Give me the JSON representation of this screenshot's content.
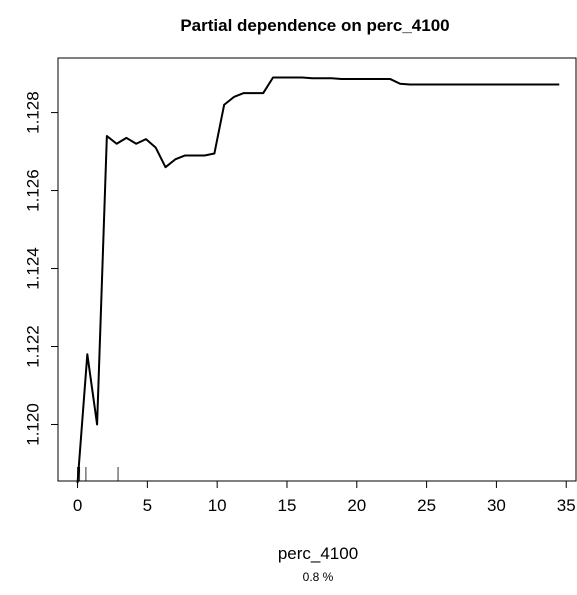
{
  "chart_data": {
    "type": "line",
    "title": "Partial dependence on perc_4100",
    "xlabel": "perc_4100",
    "subtitle": "0.8 %",
    "ylabel": "",
    "xlim": [
      -1.4,
      35.7
    ],
    "ylim": [
      1.11855,
      1.1294
    ],
    "x_ticks": [
      0,
      5,
      10,
      15,
      20,
      25,
      30,
      35
    ],
    "y_ticks": [
      1.12,
      1.122,
      1.124,
      1.126,
      1.128
    ],
    "y_tick_labels": [
      "1.120",
      "1.122",
      "1.124",
      "1.126",
      "1.128"
    ],
    "grid": false,
    "line_color": "#000000",
    "series": [
      {
        "x": [
          0.0,
          0.7,
          1.4,
          2.1,
          2.8,
          3.5,
          4.2,
          4.9,
          5.6,
          6.3,
          7.0,
          7.7,
          8.4,
          9.1,
          9.8,
          10.5,
          11.2,
          11.9,
          12.6,
          13.3,
          14.0,
          14.7,
          15.4,
          16.1,
          16.8,
          17.5,
          18.2,
          18.9,
          19.6,
          20.3,
          21.0,
          21.7,
          22.4,
          23.1,
          23.8,
          24.5,
          25.2,
          25.9,
          26.6,
          27.3,
          28.0,
          28.7,
          29.4,
          30.1,
          30.8,
          31.5,
          32.2,
          32.9,
          33.6,
          34.3,
          34.5
        ],
        "y": [
          1.1185,
          1.1218,
          1.12,
          1.1274,
          1.1272,
          1.12735,
          1.1272,
          1.12732,
          1.1271,
          1.1266,
          1.1268,
          1.1269,
          1.1269,
          1.1269,
          1.12695,
          1.1282,
          1.1284,
          1.1285,
          1.1285,
          1.1285,
          1.1289,
          1.1289,
          1.1289,
          1.1289,
          1.12888,
          1.12888,
          1.12888,
          1.12886,
          1.12886,
          1.12886,
          1.12886,
          1.12886,
          1.12886,
          1.12874,
          1.12872,
          1.12872,
          1.12872,
          1.12872,
          1.12872,
          1.12872,
          1.12872,
          1.12872,
          1.12872,
          1.12872,
          1.12872,
          1.12872,
          1.12872,
          1.12872,
          1.12872,
          1.12872,
          1.12872
        ]
      }
    ],
    "rug_x": [
      0.0,
      0.05,
      0.15,
      0.6,
      2.9
    ]
  }
}
